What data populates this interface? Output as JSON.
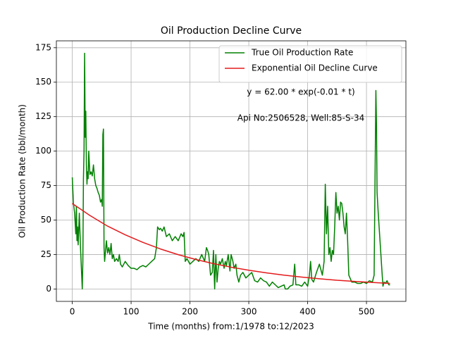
{
  "chart_data": {
    "type": "line",
    "title": "Oil Production Decline Curve",
    "x_label": "Time (months) from:1/1978 to:12/2023",
    "y_label": "Oil Production Rate (bbl/month)",
    "annotations": [
      "y = 62.00 * exp(-0.01 * t)",
      "Api No:2506528, Well:85-S-34"
    ],
    "xlim": [
      -27,
      567
    ],
    "ylim": [
      -9,
      180
    ],
    "xticks": [
      0,
      100,
      200,
      300,
      400,
      500
    ],
    "yticks": [
      0,
      25,
      50,
      75,
      100,
      125,
      150,
      175
    ],
    "grid": true,
    "legend": "upper right",
    "series": [
      {
        "name": "True Oil Production Rate",
        "color": "#008000",
        "x": [
          0,
          2,
          4,
          6,
          7,
          8,
          9,
          10,
          12,
          14,
          16,
          17,
          18,
          19,
          20,
          21,
          22,
          23,
          24,
          25,
          26,
          27,
          28,
          30,
          32,
          34,
          36,
          38,
          40,
          42,
          44,
          46,
          48,
          50,
          51,
          52,
          53,
          54,
          55,
          58,
          60,
          62,
          64,
          66,
          68,
          70,
          72,
          75,
          78,
          80,
          82,
          85,
          90,
          95,
          100,
          105,
          110,
          115,
          120,
          125,
          130,
          135,
          140,
          143,
          145,
          148,
          150,
          153,
          156,
          160,
          165,
          170,
          175,
          180,
          185,
          188,
          190,
          192,
          195,
          200,
          205,
          210,
          215,
          220,
          225,
          228,
          230,
          232,
          235,
          238,
          240,
          242,
          244,
          246,
          248,
          250,
          252,
          255,
          258,
          260,
          262,
          265,
          268,
          270,
          273,
          275,
          278,
          280,
          283,
          286,
          290,
          295,
          300,
          305,
          310,
          315,
          320,
          325,
          330,
          335,
          340,
          345,
          350,
          355,
          360,
          362,
          366,
          370,
          375,
          378,
          380,
          385,
          390,
          395,
          400,
          403,
          405,
          407,
          410,
          415,
          420,
          425,
          428,
          430,
          432,
          434,
          436,
          438,
          440,
          442,
          444,
          446,
          448,
          450,
          452,
          454,
          456,
          458,
          460,
          462,
          464,
          466,
          468,
          470,
          475,
          480,
          485,
          490,
          495,
          500,
          505,
          510,
          513,
          515,
          516,
          517,
          518,
          520,
          523,
          526,
          528,
          530,
          532,
          535,
          538,
          540
        ],
        "values": [
          81,
          62,
          55,
          40,
          60,
          35,
          45,
          32,
          55,
          30,
          10,
          0,
          20,
          80,
          100,
          171,
          110,
          129,
          90,
          76,
          85,
          80,
          100,
          83,
          85,
          82,
          90,
          80,
          75,
          73,
          70,
          68,
          63,
          65,
          60,
          112,
          116,
          30,
          20,
          35,
          26,
          30,
          25,
          33,
          22,
          25,
          20,
          22,
          20,
          25,
          18,
          16,
          20,
          17,
          15,
          15,
          14,
          16,
          17,
          16,
          18,
          20,
          22,
          30,
          45,
          43,
          44,
          42,
          45,
          38,
          40,
          35,
          38,
          35,
          40,
          38,
          41,
          20,
          22,
          18,
          20,
          22,
          20,
          25,
          20,
          30,
          28,
          25,
          10,
          12,
          28,
          0,
          25,
          5,
          15,
          20,
          18,
          22,
          15,
          20,
          17,
          25,
          13,
          25,
          20,
          15,
          18,
          10,
          5,
          10,
          12,
          8,
          10,
          12,
          6,
          5,
          8,
          6,
          5,
          2,
          5,
          3,
          1,
          2,
          3,
          0,
          0,
          2,
          3,
          18,
          3,
          3,
          2,
          5,
          2,
          10,
          20,
          7,
          5,
          12,
          18,
          10,
          20,
          76,
          40,
          60,
          25,
          30,
          20,
          28,
          25,
          45,
          70,
          55,
          60,
          50,
          63,
          62,
          55,
          45,
          40,
          55,
          35,
          10,
          5,
          5,
          4,
          4,
          5,
          4,
          6,
          5,
          10,
          100,
          144,
          120,
          70,
          55,
          35,
          15,
          2,
          5,
          4,
          6,
          3,
          3
        ]
      },
      {
        "name": "Exponential Oil Decline Curve",
        "color": "#e31a1c",
        "x": [
          0,
          30,
          60,
          90,
          120,
          150,
          180,
          210,
          240,
          270,
          300,
          330,
          360,
          390,
          420,
          450,
          480,
          510,
          540
        ],
        "values": [
          62,
          53.3,
          45.6,
          39.3,
          33.8,
          29.0,
          24.9,
          21.4,
          18.4,
          15.8,
          13.6,
          11.7,
          10.0,
          8.6,
          7.4,
          6.3,
          5.5,
          4.7,
          4.0
        ]
      }
    ]
  }
}
